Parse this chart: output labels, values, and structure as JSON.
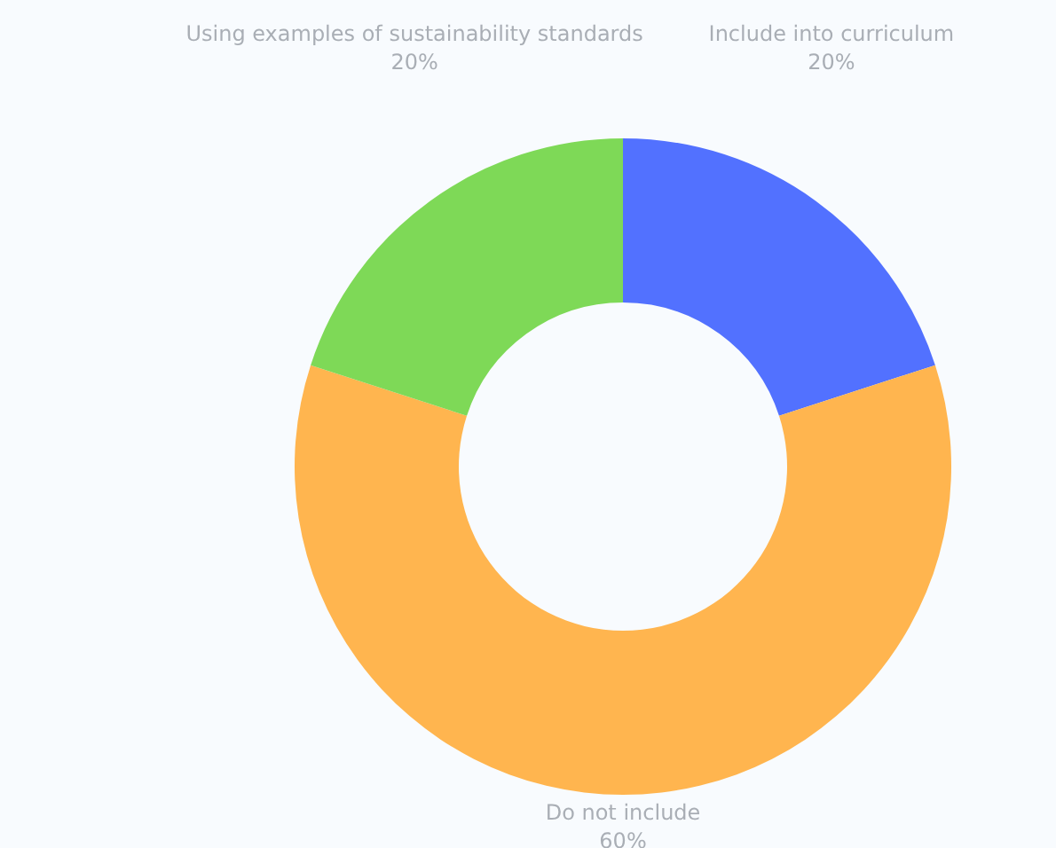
{
  "chart_data": {
    "type": "donut",
    "categories": [
      "Include into curriculum",
      "Do not include",
      "Using examples of sustainability standards"
    ],
    "values": [
      20,
      60,
      20
    ],
    "colors": [
      "#5271ff",
      "#ffb54f",
      "#7ed957"
    ],
    "value_labels": [
      "20%",
      "60%",
      "20%"
    ],
    "legend": false
  }
}
